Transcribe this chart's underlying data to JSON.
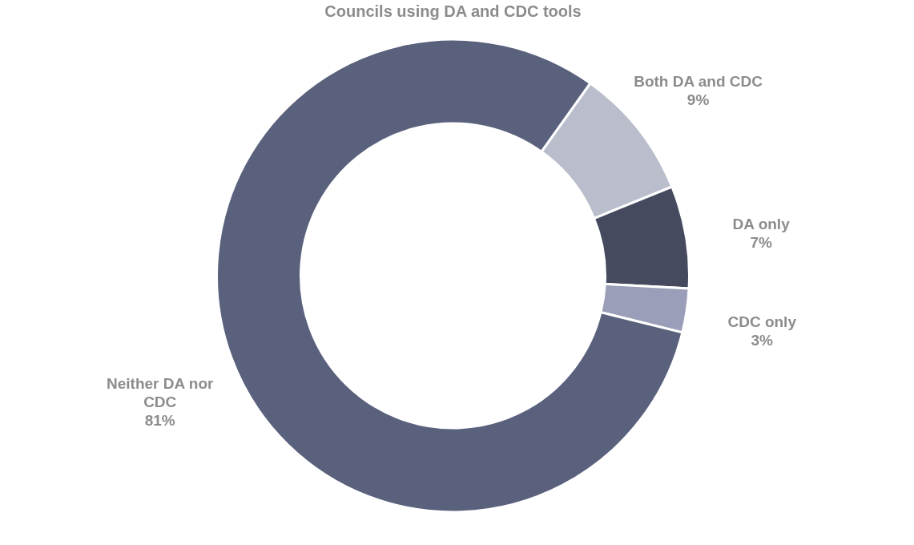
{
  "chart_data": {
    "type": "donut",
    "title": "Councils using DA and CDC tools",
    "categories": [
      "Both DA and CDC",
      "DA only",
      "CDC only",
      "Neither DA nor CDC"
    ],
    "values": [
      9,
      7,
      3,
      81
    ],
    "colors": [
      "#babdcc",
      "#454a5f",
      "#9a9eb8",
      "#5a617d"
    ],
    "value_labels": [
      "9%",
      "7%",
      "3%",
      "81%"
    ]
  }
}
